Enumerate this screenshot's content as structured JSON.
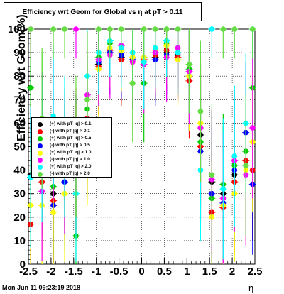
{
  "title": "Efficiency wrt Geom for Global vs   η at pT > 0.11",
  "footer": "Mon Jun 11 09:23:19 2018",
  "chart_data": {
    "type": "scatter",
    "xlabel": "η",
    "ylabel": "Efficiency wrt Geom(%)",
    "xlim": [
      -2.5,
      2.5
    ],
    "ylim": [
      0,
      100
    ],
    "x_ticks": [
      "-2.5",
      "-2",
      "-1.5",
      "-1",
      "-0.5",
      "0",
      "0.5",
      "1",
      "1.5",
      "2",
      "2.5"
    ],
    "y_ticks": [
      "0",
      "10",
      "20",
      "30",
      "40",
      "50",
      "60",
      "70",
      "80",
      "90",
      "100"
    ],
    "grid": true,
    "legend_position": "left-middle",
    "series": [
      {
        "name": "(+) with pT |q| > 0.1",
        "color": "#000000",
        "x": [
          -2.45,
          -2.2,
          -1.95,
          -1.7,
          -1.45,
          -1.2,
          -0.95,
          -0.7,
          -0.45,
          -0.2,
          0.05,
          0.3,
          0.55,
          0.8,
          1.05,
          1.3,
          1.55,
          1.8,
          2.05,
          2.3,
          2.45
        ],
        "y": [
          38,
          42,
          30,
          45,
          40,
          60,
          85,
          90,
          88,
          87,
          86,
          88,
          90,
          89,
          80,
          55,
          35,
          30,
          38,
          42,
          40
        ]
      },
      {
        "name": "(-) with pT |q| > 0.1",
        "color": "#ff0000",
        "x": [
          -2.45,
          -2.2,
          -1.95,
          -1.7,
          -1.45,
          -1.2,
          -0.95,
          -0.7,
          -0.45,
          -0.2,
          0.05,
          0.3,
          0.55,
          0.8,
          1.05,
          1.3,
          1.55,
          1.8,
          2.05,
          2.3,
          2.45
        ],
        "y": [
          17,
          35,
          27,
          40,
          45,
          62,
          84,
          91,
          87,
          86,
          87,
          89,
          91,
          88,
          78,
          50,
          22,
          24,
          35,
          44,
          40
        ]
      },
      {
        "name": "(+) with pT |q| > 0.5",
        "color": "#00cc00",
        "x": [
          -2.45,
          -2.2,
          -1.95,
          -1.7,
          -1.45,
          -1.2,
          -0.95,
          -0.7,
          -0.45,
          -0.2,
          0.05,
          0.3,
          0.55,
          0.8,
          1.05,
          1.3,
          1.55,
          1.8,
          2.05,
          2.3,
          2.45
        ],
        "y": [
          75,
          60,
          33,
          38,
          12,
          66,
          88,
          94,
          92,
          88,
          77,
          90,
          94,
          92,
          83,
          52,
          28,
          34,
          42,
          48,
          75
        ]
      },
      {
        "name": "(-) with pT |q| > 0.5",
        "color": "#0000ff",
        "x": [
          -2.45,
          -2.2,
          -1.95,
          -1.7,
          -1.45,
          -1.2,
          -0.95,
          -0.7,
          -0.45,
          -0.2,
          0.05,
          0.3,
          0.55,
          0.8,
          1.05,
          1.3,
          1.55,
          1.8,
          2.05,
          2.3,
          2.45
        ],
        "y": [
          37,
          52,
          25,
          35,
          42,
          58,
          86,
          90,
          89,
          87,
          88,
          87,
          89,
          90,
          80,
          48,
          30,
          26,
          40,
          56,
          34
        ]
      },
      {
        "name": "(+) with pT |q| > 1.0",
        "color": "#ffff00",
        "x": [
          -2.45,
          -2.2,
          -1.95,
          -1.7,
          -1.45,
          -1.2,
          -0.95,
          -0.7,
          -0.45,
          -0.2,
          0.05,
          0.3,
          0.55,
          0.8,
          1.05,
          1.3,
          1.55,
          1.8,
          2.05,
          2.3,
          2.45
        ],
        "y": [
          25,
          25,
          22,
          30,
          38,
          55,
          83,
          92,
          91,
          88,
          88,
          91,
          93,
          87,
          80,
          60,
          20,
          25,
          30,
          40,
          52
        ]
      },
      {
        "name": "(-) with pT |q| > 1.0",
        "color": "#ff00ff",
        "x": [
          -2.45,
          -2.2,
          -1.95,
          -1.7,
          -1.45,
          -1.2,
          -0.95,
          -0.7,
          -0.45,
          -0.2,
          0.05,
          0.3,
          0.55,
          0.8,
          1.05,
          1.3,
          1.55,
          1.8,
          2.05,
          2.3,
          2.45
        ],
        "y": [
          100,
          31,
          57,
          43,
          100,
          72,
          87,
          89,
          93,
          86,
          85,
          90,
          88,
          92,
          82,
          58,
          36,
          28,
          44,
          38,
          58
        ]
      },
      {
        "name": "(+) with pT |q| > 2.0",
        "color": "#00ffff",
        "x": [
          -2.45,
          -2.2,
          -1.95,
          -1.7,
          -1.45,
          -1.2,
          -0.95,
          -0.7,
          -0.45,
          -0.2,
          0.05,
          0.3,
          0.55,
          0.8,
          1.05,
          1.3,
          1.55,
          1.8,
          2.05,
          2.3,
          2.45
        ],
        "y": [
          37,
          48,
          63,
          50,
          30,
          80,
          90,
          95,
          92,
          90,
          86,
          92,
          95,
          90,
          85,
          40,
          100,
          32,
          46,
          60,
          100
        ]
      },
      {
        "name": "(-) with pT |q| > 2.0",
        "color": "#66dd44",
        "x": [
          -2.45,
          -2.2,
          -1.95,
          -1.7,
          -1.45,
          -1.2,
          -0.95,
          -0.7,
          -0.45,
          -0.2,
          0.05,
          0.3,
          0.55,
          0.8,
          1.05,
          1.3,
          1.55,
          1.8,
          2.05,
          2.3,
          2.45
        ],
        "y": [
          100,
          62,
          100,
          100,
          50,
          70,
          100,
          100,
          100,
          77,
          100,
          100,
          100,
          100,
          85,
          65,
          38,
          100,
          100,
          42,
          100
        ]
      }
    ]
  }
}
